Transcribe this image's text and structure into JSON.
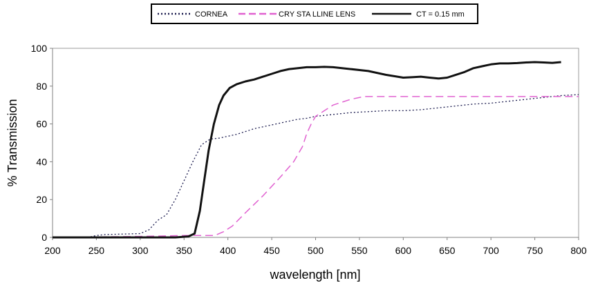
{
  "chart_data": {
    "type": "line",
    "title": "",
    "xlabel": "wavelength [nm]",
    "ylabel": "% Transmission",
    "xlim": [
      200,
      800
    ],
    "ylim": [
      0,
      100
    ],
    "x_ticks": [
      "200",
      "250",
      "300",
      "350",
      "400",
      "450",
      "500",
      "550",
      "600",
      "650",
      "700",
      "750",
      "800"
    ],
    "y_ticks": [
      "0",
      "20",
      "40",
      "60",
      "80",
      "100"
    ],
    "grid": false,
    "legend_position": "top-center",
    "series": [
      {
        "name": "CORNEA",
        "style": "dotted",
        "color": "#1a1a4e",
        "points": [
          [
            200,
            0
          ],
          [
            240,
            0
          ],
          [
            250,
            1
          ],
          [
            260,
            1.5
          ],
          [
            300,
            2
          ],
          [
            310,
            4
          ],
          [
            320,
            9
          ],
          [
            330,
            12
          ],
          [
            340,
            20
          ],
          [
            350,
            30
          ],
          [
            360,
            40
          ],
          [
            370,
            49
          ],
          [
            380,
            52
          ],
          [
            390,
            52.5
          ],
          [
            400,
            53.5
          ],
          [
            410,
            54.5
          ],
          [
            420,
            56
          ],
          [
            430,
            57.5
          ],
          [
            440,
            58.5
          ],
          [
            450,
            59.5
          ],
          [
            460,
            60.5
          ],
          [
            470,
            61.5
          ],
          [
            480,
            62.5
          ],
          [
            490,
            63
          ],
          [
            500,
            64
          ],
          [
            520,
            65
          ],
          [
            540,
            66
          ],
          [
            560,
            66.5
          ],
          [
            580,
            67
          ],
          [
            600,
            67
          ],
          [
            620,
            67.5
          ],
          [
            640,
            68.5
          ],
          [
            660,
            69.5
          ],
          [
            680,
            70.5
          ],
          [
            700,
            71
          ],
          [
            720,
            72
          ],
          [
            740,
            73
          ],
          [
            760,
            74
          ],
          [
            780,
            75
          ],
          [
            800,
            75.5
          ]
        ]
      },
      {
        "name": "CRY STA LLINE LENS",
        "style": "dashed",
        "color": "#e060d0",
        "points": [
          [
            200,
            0
          ],
          [
            300,
            0.5
          ],
          [
            350,
            1
          ],
          [
            370,
            1
          ],
          [
            385,
            1
          ],
          [
            395,
            3
          ],
          [
            405,
            6
          ],
          [
            420,
            13
          ],
          [
            440,
            22
          ],
          [
            460,
            32
          ],
          [
            475,
            40
          ],
          [
            485,
            48
          ],
          [
            490,
            55
          ],
          [
            495,
            60
          ],
          [
            500,
            64
          ],
          [
            510,
            67
          ],
          [
            520,
            70
          ],
          [
            540,
            73
          ],
          [
            555,
            74.5
          ],
          [
            600,
            74.5
          ],
          [
            650,
            74.5
          ],
          [
            700,
            74.5
          ],
          [
            750,
            74.5
          ],
          [
            800,
            74.5
          ]
        ]
      },
      {
        "name": "CT = 0.15 mm",
        "style": "solid",
        "color": "#111111",
        "points": [
          [
            200,
            0
          ],
          [
            340,
            0
          ],
          [
            355,
            0.5
          ],
          [
            362,
            2
          ],
          [
            368,
            14
          ],
          [
            373,
            30
          ],
          [
            378,
            46
          ],
          [
            384,
            60
          ],
          [
            390,
            70
          ],
          [
            395,
            75
          ],
          [
            402,
            79
          ],
          [
            410,
            81
          ],
          [
            420,
            82.5
          ],
          [
            430,
            83.5
          ],
          [
            440,
            85
          ],
          [
            450,
            86.5
          ],
          [
            460,
            88
          ],
          [
            470,
            89
          ],
          [
            480,
            89.5
          ],
          [
            490,
            90
          ],
          [
            500,
            90
          ],
          [
            510,
            90.2
          ],
          [
            520,
            90
          ],
          [
            530,
            89.5
          ],
          [
            540,
            89
          ],
          [
            560,
            88
          ],
          [
            580,
            86
          ],
          [
            600,
            84.5
          ],
          [
            610,
            84.7
          ],
          [
            620,
            85
          ],
          [
            630,
            84.5
          ],
          [
            640,
            84
          ],
          [
            650,
            84.5
          ],
          [
            660,
            86
          ],
          [
            670,
            87.5
          ],
          [
            680,
            89.5
          ],
          [
            690,
            90.5
          ],
          [
            700,
            91.5
          ],
          [
            710,
            92
          ],
          [
            720,
            92
          ],
          [
            730,
            92.2
          ],
          [
            740,
            92.5
          ],
          [
            750,
            92.7
          ],
          [
            760,
            92.5
          ],
          [
            770,
            92.3
          ],
          [
            780,
            92.7
          ]
        ]
      }
    ]
  }
}
